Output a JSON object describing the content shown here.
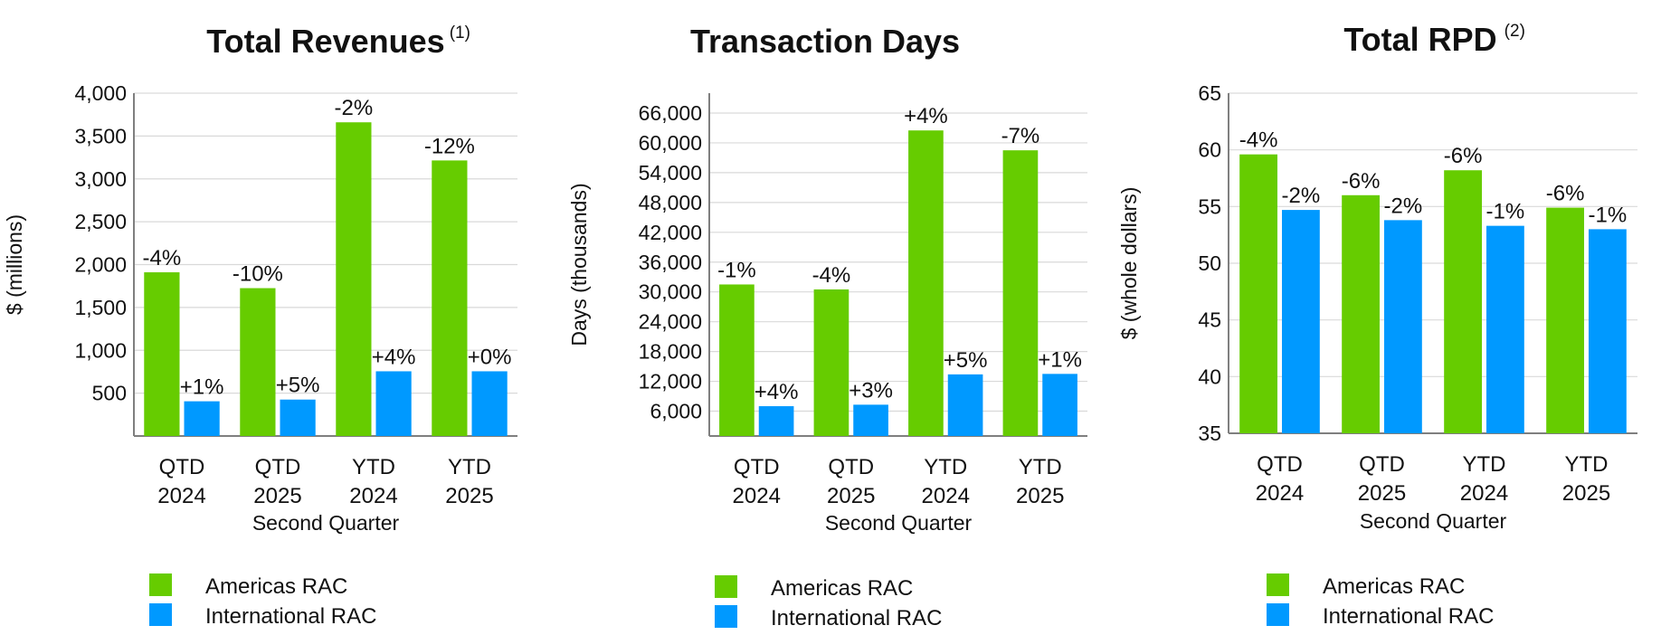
{
  "colors": {
    "americas": "#66cc00",
    "international": "#0099ff",
    "grid": "#d9d9d9",
    "axis": "#7f7f7f"
  },
  "legend": {
    "americas": "Americas RAC",
    "international": "International RAC"
  },
  "chart_data": [
    {
      "type": "bar",
      "title": "Total Revenues",
      "title_note": "(1)",
      "ylabel": "$ (millions)",
      "xlabel": "Second Quarter",
      "categories": [
        [
          "QTD",
          "2024"
        ],
        [
          "QTD",
          "2025"
        ],
        [
          "YTD",
          "2024"
        ],
        [
          "YTD",
          "2025"
        ]
      ],
      "ylim": [
        0,
        4000
      ],
      "ticks": [
        500,
        1000,
        1500,
        2000,
        2500,
        3000,
        3500,
        4000
      ],
      "tick_labels": [
        "500",
        "1,000",
        "1,500",
        "2,000",
        "2,500",
        "3,000",
        "3,500",
        "4,000"
      ],
      "series": [
        {
          "name": "Americas RAC",
          "values": [
            1910,
            1725,
            3660,
            3215
          ],
          "labels": [
            "-4%",
            "-10%",
            "-2%",
            "-12%"
          ]
        },
        {
          "name": "International RAC",
          "values": [
            405,
            425,
            755,
            755
          ],
          "labels": [
            "+1%",
            "+5%",
            "+4%",
            "+0%"
          ]
        }
      ]
    },
    {
      "type": "bar",
      "title": "Transaction Days",
      "title_note": "",
      "ylabel": "Days (thousands)",
      "xlabel": "Second Quarter",
      "categories": [
        [
          "QTD",
          "2024"
        ],
        [
          "QTD",
          "2025"
        ],
        [
          "YTD",
          "2024"
        ],
        [
          "YTD",
          "2025"
        ]
      ],
      "ylim": [
        1000,
        70000
      ],
      "ticks": [
        6000,
        12000,
        18000,
        24000,
        30000,
        36000,
        42000,
        48000,
        54000,
        60000,
        66000
      ],
      "tick_labels": [
        "6,000",
        "12,000",
        "18,000",
        "24,000",
        "30,000",
        "36,000",
        "42,000",
        "48,000",
        "54,000",
        "60,000",
        "66,000"
      ],
      "series": [
        {
          "name": "Americas RAC",
          "values": [
            31500,
            30500,
            62500,
            58500
          ],
          "labels": [
            "-1%",
            "-4%",
            "+4%",
            "-7%"
          ]
        },
        {
          "name": "International RAC",
          "values": [
            7000,
            7300,
            13400,
            13500
          ],
          "labels": [
            "+4%",
            "+3%",
            "+5%",
            "+1%"
          ]
        }
      ]
    },
    {
      "type": "bar",
      "title": "Total RPD",
      "title_note": "(2)",
      "ylabel": "$ (whole dollars)",
      "xlabel": "Second Quarter",
      "categories": [
        [
          "QTD",
          "2024"
        ],
        [
          "QTD",
          "2025"
        ],
        [
          "YTD",
          "2024"
        ],
        [
          "YTD",
          "2025"
        ]
      ],
      "ylim": [
        35,
        65
      ],
      "ticks": [
        35,
        40,
        45,
        50,
        55,
        60,
        65
      ],
      "tick_labels": [
        "35",
        "40",
        "45",
        "50",
        "55",
        "60",
        "65"
      ],
      "series": [
        {
          "name": "Americas RAC",
          "values": [
            59.6,
            56.0,
            58.2,
            54.9
          ],
          "labels": [
            "-4%",
            "-6%",
            "-6%",
            "-6%"
          ]
        },
        {
          "name": "International RAC",
          "values": [
            54.7,
            53.8,
            53.3,
            53.0
          ],
          "labels": [
            "-2%",
            "-2%",
            "-1%",
            "-1%"
          ]
        }
      ]
    }
  ]
}
